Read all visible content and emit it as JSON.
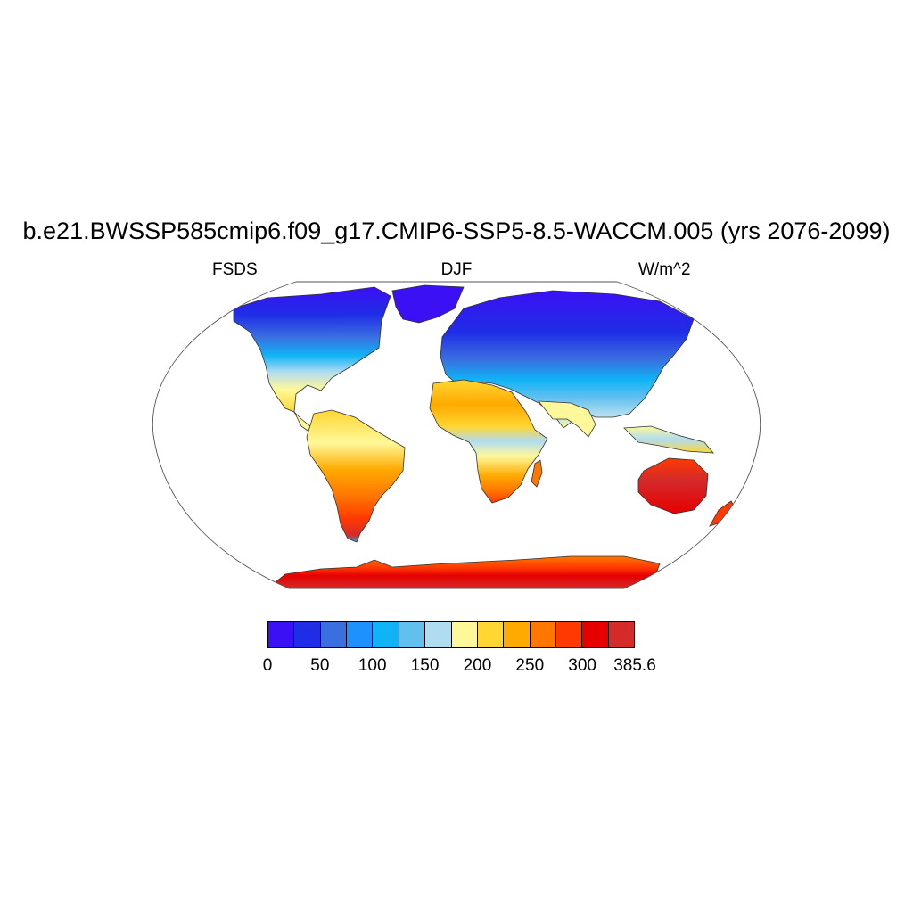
{
  "title": "b.e21.BWSSP585cmip6.f09_g17.CMIP6-SSP5-8.5-WACCM.005 (yrs 2076-2099)",
  "left_label": "FSDS",
  "center_label": "DJF",
  "right_label": "W/m^2",
  "colorbar": {
    "colors": [
      "#3c10f5",
      "#1f2de6",
      "#3a6fe0",
      "#1e90ff",
      "#10b4f6",
      "#62c0ef",
      "#b0dcf2",
      "#fff89a",
      "#ffd632",
      "#ffaa00",
      "#ff7600",
      "#ff3a00",
      "#e60000",
      "#d42a2a"
    ],
    "tick_labels": [
      "0",
      "50",
      "100",
      "150",
      "200",
      "250",
      "300",
      "385.6"
    ]
  },
  "map_data": {
    "projection": "Robinson",
    "variable": "FSDS",
    "season": "DJF",
    "units": "W/m^2"
  }
}
